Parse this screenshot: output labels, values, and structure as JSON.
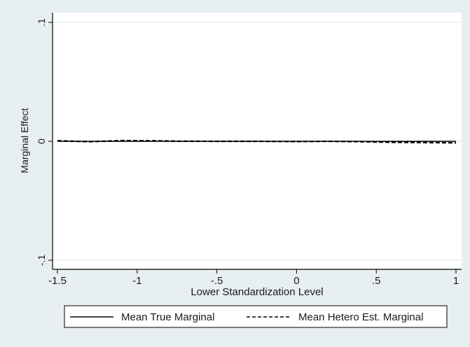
{
  "chart_data": {
    "type": "line",
    "xlabel": "Lower Standardization Level",
    "ylabel": "Marginal Effect",
    "xlim": [
      -1.5,
      1.0
    ],
    "ylim": [
      -0.1,
      0.1
    ],
    "x_ticks": [
      -1.5,
      -1,
      -0.5,
      0,
      0.5,
      1
    ],
    "x_tick_labels": [
      "-1.5",
      "-1",
      "-.5",
      "0",
      ".5",
      "1"
    ],
    "y_ticks": [
      -0.1,
      0,
      0.1
    ],
    "y_tick_labels": [
      "-.1",
      "0",
      ".1"
    ],
    "grid": "horizontal",
    "legend_position": "bottom",
    "series": [
      {
        "name": "Mean True Marginal",
        "style": "solid",
        "color": "#000000",
        "x": [
          -1.5,
          -1.25,
          -1.0,
          -0.75,
          -0.5,
          -0.25,
          0.0,
          0.25,
          0.5,
          0.75,
          1.0
        ],
        "y": [
          0,
          0,
          0,
          0,
          0,
          0,
          0,
          0,
          0,
          0,
          0
        ]
      },
      {
        "name": "Mean Hetero Est. Marginal",
        "style": "dashed",
        "color": "#000000",
        "x": [
          -1.5,
          -1.3,
          -1.1,
          -0.9,
          -0.75,
          -0.5,
          -0.25,
          0.0,
          0.2,
          0.4,
          0.6,
          0.8,
          1.0
        ],
        "y": [
          0.0005,
          -0.0003,
          0.0006,
          0.0005,
          0.0001,
          0.0,
          0.0,
          -0.0002,
          0.0,
          -0.0003,
          -0.0008,
          -0.001,
          -0.0013
        ]
      }
    ]
  }
}
